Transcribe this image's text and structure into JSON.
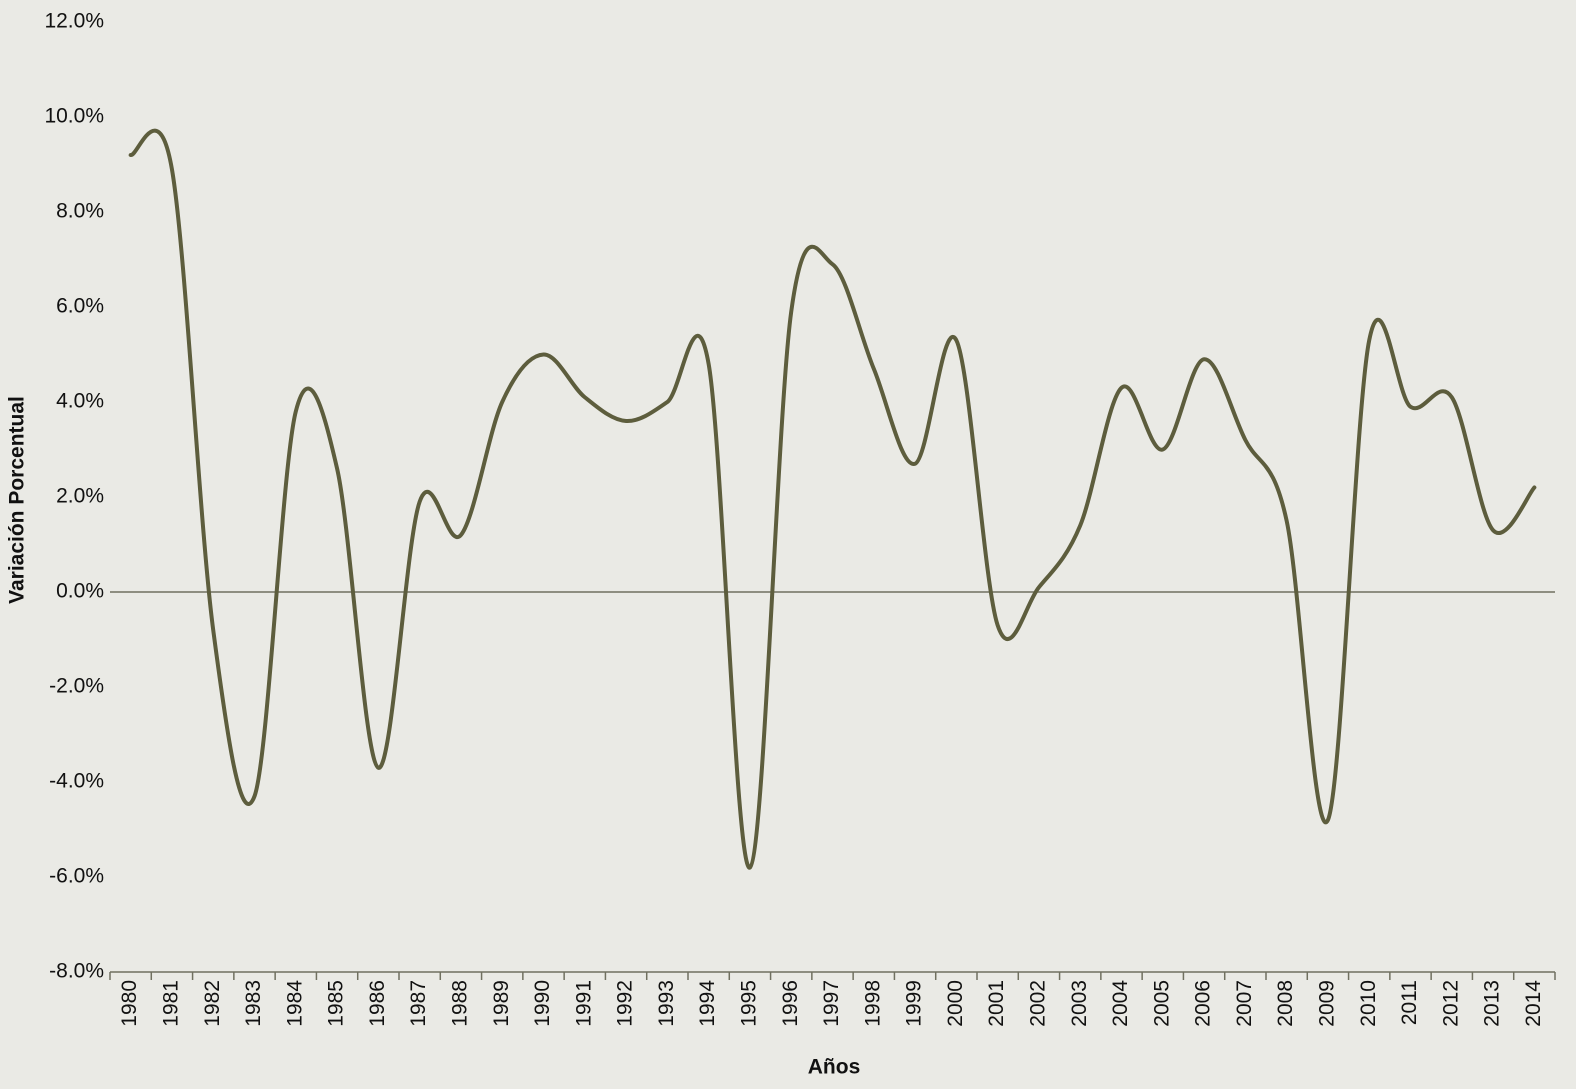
{
  "chart_data": {
    "type": "line",
    "x_label": "Años",
    "y_label": "Variación Porcentual",
    "categories": [
      "1980",
      "1981",
      "1982",
      "1983",
      "1984",
      "1985",
      "1986",
      "1987",
      "1988",
      "1989",
      "1990",
      "1991",
      "1992",
      "1993",
      "1994",
      "1995",
      "1996",
      "1997",
      "1998",
      "1999",
      "2000",
      "2001",
      "2002",
      "2003",
      "2004",
      "2005",
      "2006",
      "2007",
      "2008",
      "2009",
      "2010",
      "2011",
      "2012",
      "2013",
      "2014"
    ],
    "values": [
      9.2,
      8.9,
      -0.8,
      -4.3,
      3.8,
      2.6,
      -3.7,
      1.9,
      1.2,
      4.0,
      5.0,
      4.1,
      3.6,
      4.0,
      4.8,
      -5.8,
      5.9,
      6.9,
      4.7,
      2.7,
      5.3,
      -0.7,
      0.1,
      1.4,
      4.3,
      3.0,
      4.9,
      3.2,
      1.5,
      -4.8,
      5.3,
      3.9,
      4.1,
      1.3,
      2.2
    ],
    "color": "#5d5d3d",
    "smooth": true,
    "ylim": [
      -8,
      12
    ],
    "yticks": [
      {
        "value": -8,
        "label": "-8.0%"
      },
      {
        "value": -6,
        "label": "-6.0%"
      },
      {
        "value": -4,
        "label": "-4.0%"
      },
      {
        "value": -2,
        "label": "-2.0%"
      },
      {
        "value": 0,
        "label": "0.0%"
      },
      {
        "value": 2,
        "label": "2.0%"
      },
      {
        "value": 4,
        "label": "4.0%"
      },
      {
        "value": 6,
        "label": "6.0%"
      },
      {
        "value": 8,
        "label": "8.0%"
      },
      {
        "value": 10,
        "label": "10.0%"
      },
      {
        "value": 12,
        "label": "12.0%"
      }
    ]
  }
}
